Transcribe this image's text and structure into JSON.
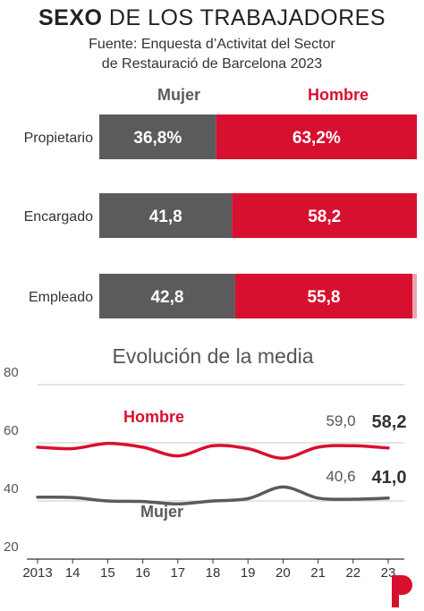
{
  "header": {
    "title_bold": "SEXO",
    "title_rest": " DE LOS TRABAJADORES",
    "source_line1": "Fuente: Enquesta d’Activitat del Sector",
    "source_line2": "de Restauració de Barcelona 2023"
  },
  "colors": {
    "mujer": "#5b5b5e",
    "hombre": "#d8102f",
    "hombre_light": "#e9a6b0",
    "grid": "#c8c8c8",
    "axis": "#333333"
  },
  "chart_data": [
    {
      "type": "bar",
      "stacked": true,
      "orientation": "horizontal",
      "legend": [
        "Mujer",
        "Hombre"
      ],
      "categories": [
        "Propietario",
        "Encargado",
        "Empleado"
      ],
      "series": [
        {
          "name": "Mujer",
          "values": [
            36.8,
            41.8,
            42.8
          ],
          "labels": [
            "36,8%",
            "41,8",
            "42,8"
          ]
        },
        {
          "name": "Hombre",
          "values": [
            63.2,
            58.2,
            55.8
          ],
          "labels": [
            "63,2%",
            "58,2",
            "55,8"
          ]
        }
      ],
      "xlim": [
        0,
        100
      ]
    },
    {
      "type": "line",
      "title": "Evolución de la media",
      "x": [
        "2013",
        "14",
        "15",
        "16",
        "17",
        "18",
        "19",
        "20",
        "21",
        "22",
        "23"
      ],
      "series": [
        {
          "name": "Hombre",
          "values": [
            58.5,
            58.0,
            59.8,
            58.5,
            55.5,
            59.0,
            58.0,
            54.7,
            58.5,
            59.0,
            58.2
          ]
        },
        {
          "name": "Mujer",
          "values": [
            41.3,
            41.2,
            40.0,
            39.8,
            39.0,
            40.0,
            40.8,
            44.8,
            41.0,
            40.6,
            41.0
          ]
        }
      ],
      "end_labels": {
        "Hombre": {
          "prev": "59,0",
          "last": "58,2"
        },
        "Mujer": {
          "prev": "40,6",
          "last": "41,0"
        }
      },
      "ylim": [
        20,
        80
      ],
      "yticks": [
        "80",
        "60",
        "40",
        "20"
      ],
      "grid": true
    }
  ]
}
